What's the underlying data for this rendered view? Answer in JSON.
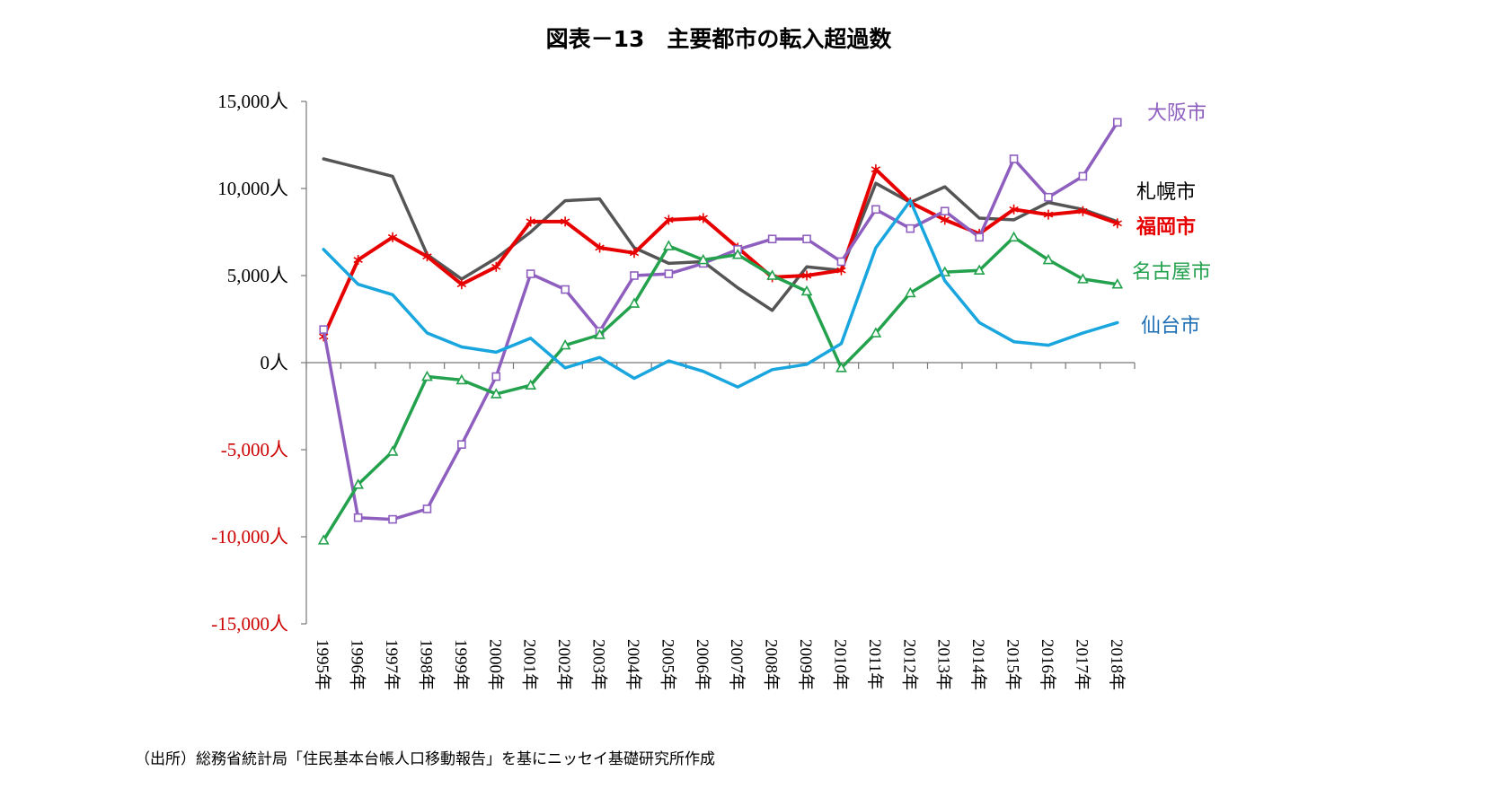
{
  "title": "図表－13　主要都市の転入超過数",
  "source": "（出所）総務省統計局「住民基本台帳人口移動報告」を基にニッセイ基礎研究所作成",
  "colors": {
    "positive_tick": "#000000",
    "negative_tick": "#cc0000"
  },
  "chart_data": {
    "type": "line",
    "title": "図表－13　主要都市の転入超過数",
    "categories": [
      "1995年",
      "1996年",
      "1997年",
      "1998年",
      "1999年",
      "2000年",
      "2001年",
      "2002年",
      "2003年",
      "2004年",
      "2005年",
      "2006年",
      "2007年",
      "2008年",
      "2009年",
      "2010年",
      "2011年",
      "2012年",
      "2013年",
      "2014年",
      "2015年",
      "2016年",
      "2017年",
      "2018年"
    ],
    "ylim": [
      -15000,
      15000
    ],
    "yticks": [
      {
        "value": 15000,
        "label": "15,000人"
      },
      {
        "value": 10000,
        "label": "10,000人"
      },
      {
        "value": 5000,
        "label": "5,000人"
      },
      {
        "value": 0,
        "label": "0人"
      },
      {
        "value": -5000,
        "label": "-5,000人"
      },
      {
        "value": -10000,
        "label": "-10,000人"
      },
      {
        "value": -15000,
        "label": "-15,000人"
      }
    ],
    "grid": false,
    "legend": "right (labels at line ends)",
    "series": [
      {
        "name": "札幌市",
        "color": "#555555",
        "marker": "none",
        "bold": false,
        "values": [
          11700,
          11200,
          10700,
          6200,
          4800,
          6000,
          7500,
          9300,
          9400,
          6600,
          5700,
          5800,
          4300,
          3000,
          5500,
          5300,
          10300,
          9200,
          10100,
          8300,
          8200,
          9200,
          8800,
          8100
        ]
      },
      {
        "name": "福岡市",
        "color": "#e60000",
        "marker": "star",
        "bold": true,
        "values": [
          1500,
          5900,
          7200,
          6100,
          4500,
          5500,
          8100,
          8100,
          6600,
          6300,
          8200,
          8300,
          6600,
          4900,
          5000,
          5300,
          11100,
          9200,
          8200,
          7400,
          8800,
          8500,
          8700,
          8000
        ]
      },
      {
        "name": "大阪市",
        "color": "#8e5fbf",
        "marker": "square",
        "bold": false,
        "values": [
          1900,
          -8900,
          -9000,
          -8400,
          -4700,
          -800,
          5100,
          4200,
          1800,
          5000,
          5100,
          5700,
          6500,
          7100,
          7100,
          5800,
          8800,
          7700,
          8700,
          7200,
          11700,
          9500,
          10700,
          13800
        ]
      },
      {
        "name": "名古屋市",
        "color": "#23a14d",
        "marker": "triangle",
        "bold": false,
        "values": [
          -10200,
          -7000,
          -5100,
          -800,
          -1000,
          -1800,
          -1300,
          1000,
          1600,
          3400,
          6700,
          5900,
          6200,
          5000,
          4100,
          -300,
          1700,
          4000,
          5200,
          5300,
          7200,
          5900,
          4800,
          4500
        ]
      },
      {
        "name": "仙台市",
        "color": "#19a6de",
        "marker": "none",
        "bold": false,
        "values": [
          6500,
          4500,
          3900,
          1700,
          900,
          600,
          1400,
          -300,
          300,
          -900,
          100,
          -500,
          -1400,
          -400,
          -100,
          1100,
          6600,
          9300,
          4700,
          2300,
          1200,
          1000,
          1700,
          2300
        ]
      }
    ]
  }
}
